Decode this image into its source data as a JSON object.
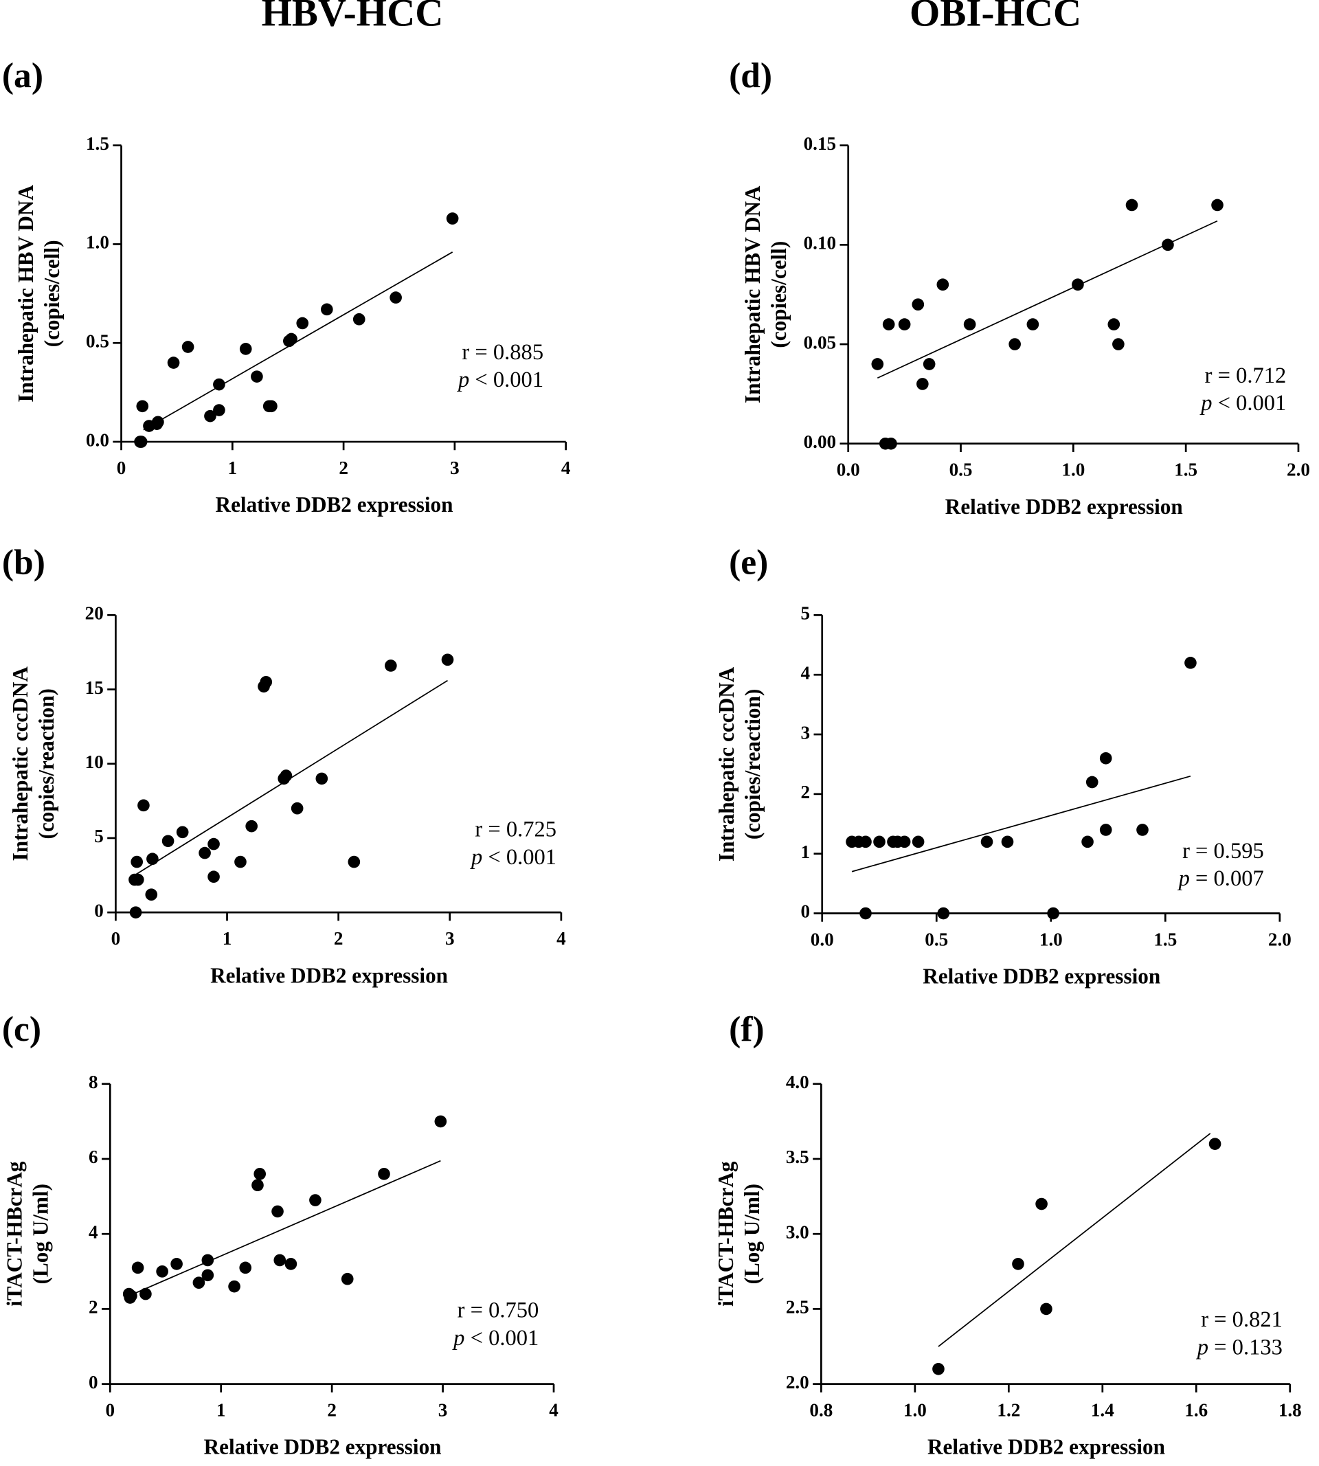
{
  "column_titles": [
    "HBV-HCC",
    "OBI-HCC"
  ],
  "chart_data": [
    {
      "type": "scatter",
      "panel": "(a)",
      "xlabel": "Relative DDB2 expression",
      "ylabel": [
        "Intrahepatic HBV DNA",
        "(copies/cell)"
      ],
      "annotations": [
        "r = 0.885",
        "p < 0.001"
      ],
      "x": [
        0.17,
        0.18,
        0.19,
        0.25,
        0.32,
        0.33,
        0.47,
        0.6,
        0.8,
        0.88,
        0.88,
        1.12,
        1.22,
        1.33,
        1.35,
        1.51,
        1.53,
        1.63,
        1.85,
        2.14,
        2.47,
        2.98
      ],
      "values": [
        0,
        0,
        0.18,
        0.08,
        0.09,
        0.1,
        0.4,
        0.48,
        0.13,
        0.29,
        0.16,
        0.47,
        0.33,
        0.18,
        0.18,
        0.51,
        0.52,
        0.6,
        0.67,
        0.62,
        0.73,
        1.13
      ],
      "trend_line": {
        "x": [
          0.2,
          2.98
        ],
        "y": [
          0.06,
          0.96
        ]
      },
      "color": "#000000",
      "xlim": [
        0,
        4
      ],
      "xticks": [
        0,
        1,
        2,
        3,
        4
      ],
      "ylim": [
        0,
        1.5
      ],
      "yticks": [
        {
          "value": 0,
          "label": "0.0"
        },
        {
          "value": 0.5,
          "label": "0.5"
        },
        {
          "value": 1,
          "label": "1.0"
        },
        {
          "value": 1.5,
          "label": "1.5"
        }
      ]
    },
    {
      "type": "scatter",
      "panel": "(b)",
      "xlabel": "Relative DDB2 expression",
      "ylabel": [
        "Intrahepatic cccDNA",
        "(copies/reaction)"
      ],
      "annotations": [
        "r = 0.725",
        "p < 0.001"
      ],
      "x": [
        0.17,
        0.18,
        0.19,
        0.2,
        0.25,
        0.32,
        0.33,
        0.47,
        0.6,
        0.8,
        0.88,
        0.88,
        1.12,
        1.22,
        1.33,
        1.35,
        1.51,
        1.53,
        1.63,
        1.85,
        2.14,
        2.47,
        2.98
      ],
      "values": [
        2.2,
        0,
        3.4,
        2.2,
        7.2,
        1.2,
        3.6,
        4.8,
        5.4,
        4.0,
        4.6,
        2.4,
        3.4,
        5.8,
        15.2,
        15.5,
        9.0,
        9.2,
        7.0,
        9.0,
        3.4,
        16.6,
        17.0
      ],
      "trend_line": {
        "x": [
          0.17,
          2.98
        ],
        "y": [
          2.5,
          15.6
        ]
      },
      "color": "#000000",
      "xlim": [
        0,
        4
      ],
      "xticks": [
        0,
        1,
        2,
        3,
        4
      ],
      "ylim": [
        0,
        20
      ],
      "yticks": [
        0,
        5,
        10,
        15,
        20
      ]
    },
    {
      "type": "scatter",
      "panel": "(c)",
      "xlabel": "Relative DDB2 expression",
      "ylabel": [
        "iTACT-HBcrAg",
        "(Log U/ml)"
      ],
      "annotations": [
        "r = 0.750",
        "p < 0.001"
      ],
      "x": [
        0.17,
        0.18,
        0.19,
        0.25,
        0.32,
        0.47,
        0.6,
        0.8,
        0.88,
        0.88,
        1.12,
        1.22,
        1.33,
        1.35,
        1.51,
        1.53,
        1.63,
        1.85,
        2.14,
        2.47,
        2.98
      ],
      "values": [
        2.4,
        2.3,
        2.35,
        3.1,
        2.4,
        3.0,
        3.2,
        2.7,
        2.9,
        3.3,
        2.6,
        3.1,
        5.3,
        5.6,
        4.6,
        3.3,
        3.2,
        4.9,
        2.8,
        5.6,
        7.0
      ],
      "trend_line": {
        "x": [
          0.17,
          2.98
        ],
        "y": [
          2.35,
          5.95
        ]
      },
      "color": "#000000",
      "xlim": [
        0,
        4
      ],
      "xticks": [
        0,
        1,
        2,
        3,
        4
      ],
      "ylim": [
        0,
        8
      ],
      "yticks": [
        0,
        2,
        4,
        6,
        8
      ]
    },
    {
      "type": "scatter",
      "panel": "(d)",
      "xlabel": "Relative DDB2 expression",
      "ylabel": [
        "Intrahepatic HBV DNA",
        "(copies/cell)"
      ],
      "annotations": [
        "r = 0.712",
        "p < 0.001"
      ],
      "x": [
        0.13,
        0.18,
        0.165,
        0.19,
        0.25,
        0.31,
        0.33,
        0.36,
        0.42,
        0.54,
        0.74,
        0.82,
        1.02,
        1.18,
        1.2,
        1.26,
        1.42,
        1.64
      ],
      "values": [
        0.04,
        0.06,
        0,
        0,
        0.06,
        0.07,
        0.03,
        0.04,
        0.08,
        0.06,
        0.05,
        0.06,
        0.08,
        0.06,
        0.05,
        0.12,
        0.1,
        0.12
      ],
      "trend_line": {
        "x": [
          0.13,
          1.64
        ],
        "y": [
          0.033,
          0.112
        ]
      },
      "color": "#000000",
      "xlim": [
        0,
        2
      ],
      "xticks": [
        {
          "value": 0,
          "label": "0.0"
        },
        {
          "value": 0.5,
          "label": "0.5"
        },
        {
          "value": 1,
          "label": "1.0"
        },
        {
          "value": 1.5,
          "label": "1.5"
        },
        {
          "value": 2,
          "label": "2.0"
        }
      ],
      "ylim": [
        0,
        0.15
      ],
      "yticks": [
        {
          "value": 0,
          "label": "0.00"
        },
        {
          "value": 0.05,
          "label": "0.05"
        },
        {
          "value": 0.1,
          "label": "0.10"
        },
        {
          "value": 0.15,
          "label": "0.15"
        }
      ]
    },
    {
      "type": "scatter",
      "panel": "(e)",
      "xlabel": "Relative DDB2 expression",
      "ylabel": [
        "Intrahepatic cccDNA",
        "(copies/reaction)"
      ],
      "annotations": [
        "r = 0.595",
        "p = 0.007"
      ],
      "x": [
        0.13,
        0.16,
        0.19,
        0.19,
        0.25,
        0.31,
        0.33,
        0.36,
        0.42,
        0.53,
        0.72,
        0.81,
        1.01,
        1.16,
        1.18,
        1.24,
        1.24,
        1.4,
        1.61
      ],
      "values": [
        1.2,
        1.2,
        1.2,
        0,
        1.2,
        1.2,
        1.2,
        1.2,
        1.2,
        0,
        1.2,
        1.2,
        0,
        1.2,
        2.2,
        2.6,
        1.4,
        1.4,
        4.2
      ],
      "trend_line": {
        "x": [
          0.13,
          1.61
        ],
        "y": [
          0.7,
          2.3
        ]
      },
      "color": "#000000",
      "xlim": [
        0,
        2
      ],
      "xticks": [
        {
          "value": 0,
          "label": "0.0"
        },
        {
          "value": 0.5,
          "label": "0.5"
        },
        {
          "value": 1,
          "label": "1.0"
        },
        {
          "value": 1.5,
          "label": "1.5"
        },
        {
          "value": 2,
          "label": "2.0"
        }
      ],
      "ylim": [
        0,
        5
      ],
      "yticks": [
        0,
        1,
        2,
        3,
        4,
        5
      ]
    },
    {
      "type": "scatter",
      "panel": "(f)",
      "xlabel": "Relative DDB2 expression",
      "ylabel": [
        "iTACT-HBcrAg",
        "(Log U/ml)"
      ],
      "annotations": [
        "r = 0.821",
        "p = 0.133"
      ],
      "x": [
        1.05,
        1.22,
        1.27,
        1.28,
        1.64
      ],
      "values": [
        2.1,
        2.8,
        3.2,
        2.5,
        3.6
      ],
      "trend_line": {
        "x": [
          1.05,
          1.63
        ],
        "y": [
          2.25,
          3.67
        ]
      },
      "color": "#000000",
      "xlim": [
        0.8,
        1.8
      ],
      "xticks": [
        0.8,
        {
          "value": 1,
          "label": "1.0"
        },
        1.2,
        1.4,
        1.6,
        1.8
      ],
      "ylim": [
        2,
        4
      ],
      "yticks": [
        {
          "value": 2,
          "label": "2.0"
        },
        2.5,
        {
          "value": 3,
          "label": "3.0"
        },
        3.5,
        {
          "value": 4,
          "label": "4.0"
        }
      ]
    }
  ]
}
